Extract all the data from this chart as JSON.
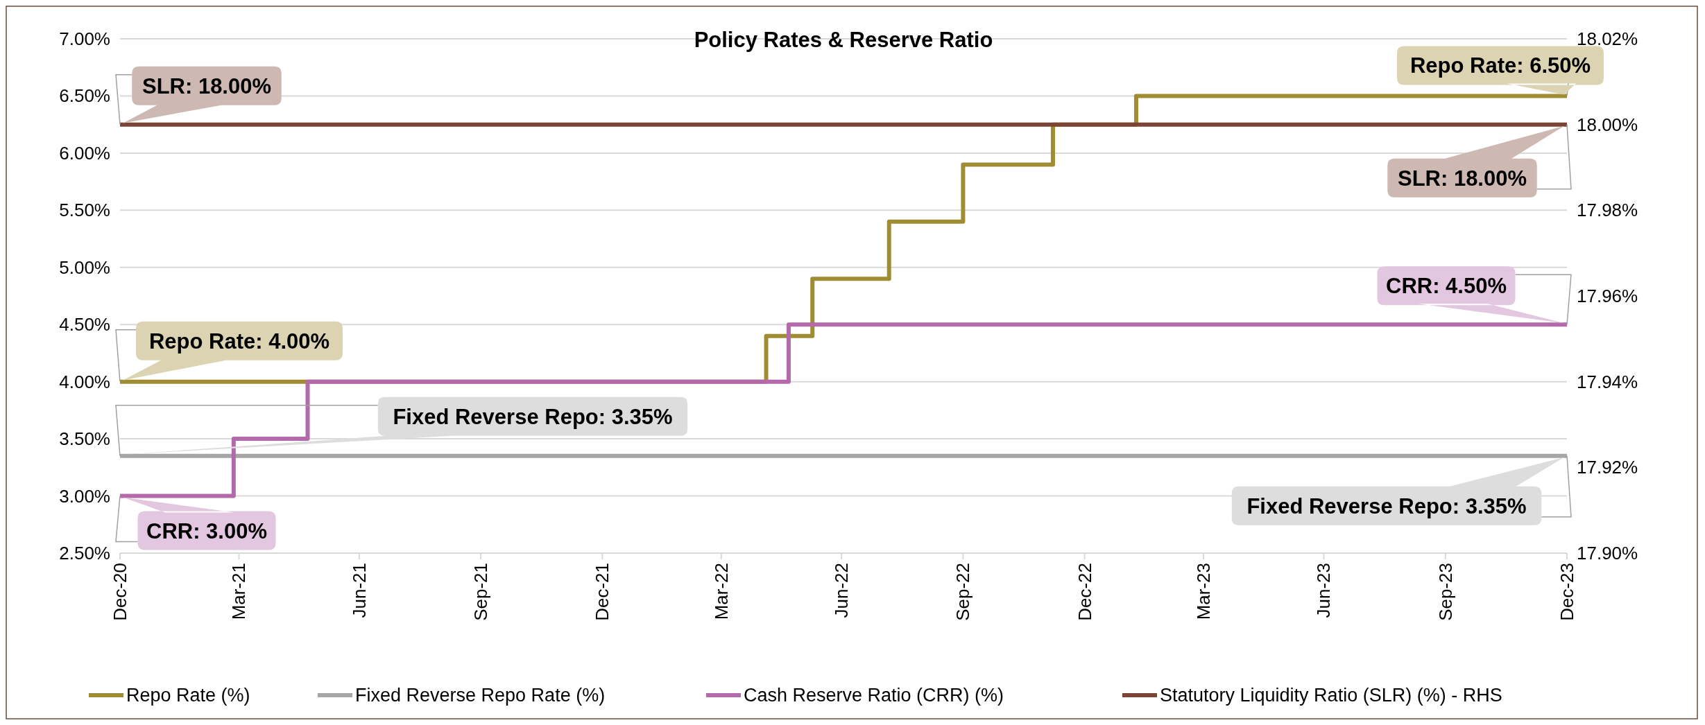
{
  "chart_data": {
    "type": "step",
    "title": "Policy Rates & Reserve Ratio",
    "xlim": [
      "2020-12-31",
      "2023-12-31"
    ],
    "xticks": [
      {
        "value": "2020-12-31",
        "label": "Dec-20"
      },
      {
        "value": "2021-03-31",
        "label": "Mar-21"
      },
      {
        "value": "2021-06-30",
        "label": "Jun-21"
      },
      {
        "value": "2021-09-30",
        "label": "Sep-21"
      },
      {
        "value": "2021-12-31",
        "label": "Dec-21"
      },
      {
        "value": "2022-03-31",
        "label": "Mar-22"
      },
      {
        "value": "2022-06-30",
        "label": "Jun-22"
      },
      {
        "value": "2022-09-30",
        "label": "Sep-22"
      },
      {
        "value": "2022-12-31",
        "label": "Dec-22"
      },
      {
        "value": "2023-03-31",
        "label": "Mar-23"
      },
      {
        "value": "2023-06-30",
        "label": "Jun-23"
      },
      {
        "value": "2023-09-30",
        "label": "Sep-23"
      },
      {
        "value": "2023-12-31",
        "label": "Dec-23"
      }
    ],
    "ylim": [
      2.5,
      7
    ],
    "yticks": [
      {
        "value": 2.5,
        "label": "2.50%"
      },
      {
        "value": 3,
        "label": "3.00%"
      },
      {
        "value": 3.5,
        "label": "3.50%"
      },
      {
        "value": 4,
        "label": "4.00%"
      },
      {
        "value": 4.5,
        "label": "4.50%"
      },
      {
        "value": 5,
        "label": "5.00%"
      },
      {
        "value": 5.5,
        "label": "5.50%"
      },
      {
        "value": 6,
        "label": "6.00%"
      },
      {
        "value": 6.5,
        "label": "6.50%"
      },
      {
        "value": 7,
        "label": "7.00%"
      }
    ],
    "y2lim": [
      17.9,
      18.02
    ],
    "y2ticks": [
      {
        "value": 17.9,
        "label": "17.90%"
      },
      {
        "value": 17.92,
        "label": "17.92%"
      },
      {
        "value": 17.94,
        "label": "17.94%"
      },
      {
        "value": 17.96,
        "label": "17.96%"
      },
      {
        "value": 17.98,
        "label": "17.98%"
      },
      {
        "value": 18,
        "label": "18.00%"
      },
      {
        "value": 18.02,
        "label": "18.02%"
      }
    ],
    "grid": "y",
    "legend": "bottom",
    "line_style": "solid",
    "marker": "none",
    "series": [
      {
        "name": "Repo Rate (%)",
        "color": "#a08c32",
        "x": [
          "2020-12-31",
          "2022-05-04",
          "2022-06-08",
          "2022-08-05",
          "2022-09-30",
          "2022-12-07",
          "2023-02-08",
          "2023-12-31"
        ],
        "values": [
          4.0,
          4.4,
          4.9,
          5.4,
          5.9,
          6.25,
          6.5,
          6.5
        ]
      },
      {
        "name": "Fixed Reverse Repo Rate (%)",
        "color": "#a6a6a6",
        "x": [
          "2020-12-31",
          "2023-12-31"
        ],
        "values": [
          3.35,
          3.35
        ]
      },
      {
        "name": "Cash Reserve Ratio (CRR) (%)",
        "color": "#b46aaa",
        "x": [
          "2020-12-31",
          "2021-03-27",
          "2021-05-22",
          "2022-05-21",
          "2023-12-31"
        ],
        "values": [
          3.0,
          3.5,
          4.0,
          4.5,
          4.5
        ]
      },
      {
        "name": "Statutory Liquidity Ratio (SLR) (%) - RHS",
        "color": "#7b4535",
        "axis": "y2",
        "x": [
          "2020-12-31",
          "2023-12-31"
        ],
        "values": [
          18.0,
          18.0
        ]
      }
    ],
    "annotations": [
      {
        "text": "SLR: 18.00%",
        "x": "2020-12-31",
        "y": 6.25
      },
      {
        "text": "Repo Rate: 4.00%",
        "x": "2020-12-31",
        "y": 4.0
      },
      {
        "text": "Fixed Reverse Repo: 3.35%",
        "x": "2020-12-31",
        "y": 3.35
      },
      {
        "text": "CRR: 3.00%",
        "x": "2020-12-31",
        "y": 3.0
      },
      {
        "text": "Repo Rate: 6.50%",
        "x": "2023-12-31",
        "y": 6.5
      },
      {
        "text": "SLR: 18.00%",
        "x": "2023-12-31",
        "y": 6.25
      },
      {
        "text": "CRR: 4.50%",
        "x": "2023-12-31",
        "y": 4.5
      },
      {
        "text": "Fixed Reverse Repo: 3.35%",
        "x": "2023-12-31",
        "y": 3.35
      }
    ]
  }
}
